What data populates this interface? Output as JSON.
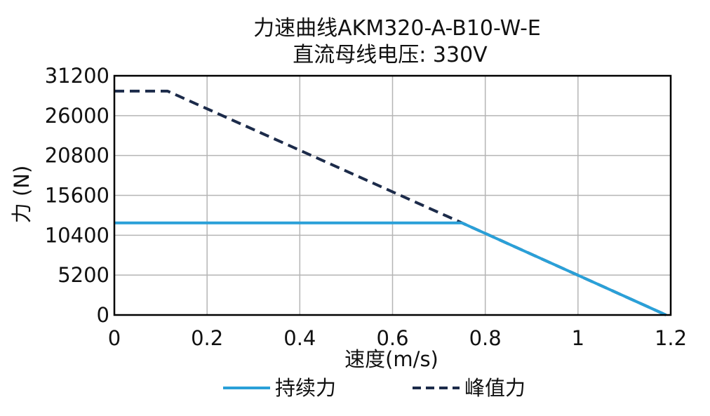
{
  "chart_data": {
    "type": "line",
    "title": "力速曲线AKM320-A-B10-W-E",
    "subtitle": "直流母线电压: 330V",
    "xlabel": "速度(m/s)",
    "ylabel": "力 (N)",
    "xlim": [
      0,
      1.2
    ],
    "ylim": [
      0,
      31200
    ],
    "xticks": [
      0,
      0.2,
      0.4,
      0.6,
      0.8,
      1,
      1.2
    ],
    "xtick_labels": [
      "0",
      "0.2",
      "0.4",
      "0.6",
      "0.8",
      "1",
      "1.2"
    ],
    "yticks": [
      0,
      5200,
      10400,
      15600,
      20800,
      26000,
      31200
    ],
    "ytick_labels": [
      "0",
      "5200",
      "10400",
      "15600",
      "20800",
      "26000",
      "31200"
    ],
    "grid": true,
    "legend_position": "bottom",
    "series": [
      {
        "name": "持续力",
        "color": "#2aa0d8",
        "style": "solid",
        "x": [
          0,
          0.75,
          1.19
        ],
        "y": [
          12000,
          12000,
          0
        ]
      },
      {
        "name": "峰值力",
        "color": "#1c2b4a",
        "style": "dashed",
        "x": [
          0,
          0.115,
          0.75,
          1.19
        ],
        "y": [
          29200,
          29200,
          12000,
          0
        ]
      }
    ]
  }
}
